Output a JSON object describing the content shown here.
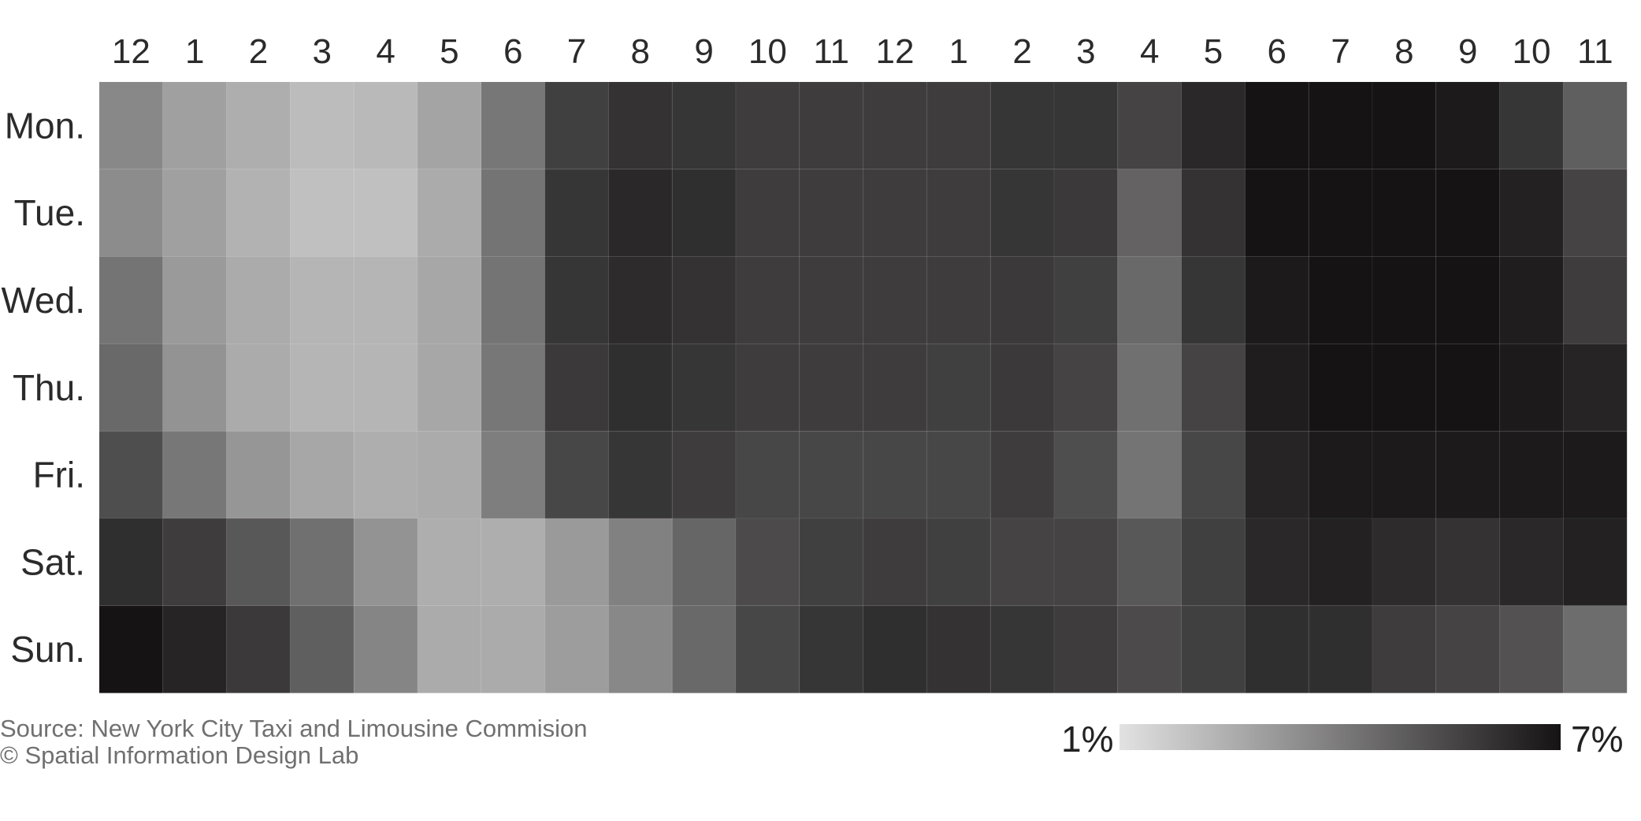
{
  "chart_data": {
    "type": "heatmap",
    "x_tick_labels": [
      "12",
      "1",
      "2",
      "3",
      "4",
      "5",
      "6",
      "7",
      "8",
      "9",
      "10",
      "11",
      "12",
      "1",
      "2",
      "3",
      "4",
      "5",
      "6",
      "7",
      "8",
      "9",
      "10",
      "11"
    ],
    "y_tick_labels": [
      "Mon.",
      "Tue.",
      "Wed.",
      "Thu.",
      "Fri.",
      "Sat.",
      "Sun."
    ],
    "colorscale": {
      "min_label": "1%",
      "max_label": "7%",
      "min_value": 1,
      "max_value": 7,
      "min_color": "#e2e2e2",
      "max_color": "#151313"
    },
    "values_pct": [
      [
        3.6,
        2.9,
        2.5,
        2.1,
        2.2,
        2.8,
        4.1,
        5.7,
        6.1,
        6.0,
        5.8,
        5.8,
        5.8,
        5.8,
        6.0,
        6.0,
        5.6,
        6.4,
        7.5,
        7.5,
        7.0,
        6.8,
        6.0,
        4.8
      ],
      [
        3.5,
        2.9,
        2.4,
        2.0,
        2.0,
        2.6,
        4.2,
        6.0,
        6.4,
        6.2,
        5.8,
        5.8,
        5.8,
        5.8,
        6.0,
        5.9,
        4.7,
        6.1,
        7.0,
        7.2,
        7.1,
        7.1,
        6.6,
        5.6
      ],
      [
        4.2,
        3.1,
        2.6,
        2.3,
        2.3,
        2.7,
        4.2,
        6.0,
        6.3,
        6.1,
        5.8,
        5.8,
        5.8,
        5.8,
        5.9,
        5.7,
        4.5,
        6.0,
        6.8,
        7.1,
        7.0,
        7.0,
        6.7,
        5.8
      ],
      [
        4.5,
        3.3,
        2.6,
        2.3,
        2.3,
        2.7,
        4.1,
        5.9,
        6.2,
        6.0,
        5.8,
        5.8,
        5.8,
        5.7,
        5.9,
        5.6,
        4.3,
        5.6,
        6.7,
        7.0,
        7.0,
        7.0,
        6.8,
        6.5
      ],
      [
        5.3,
        4.1,
        3.2,
        2.7,
        2.5,
        2.6,
        3.9,
        5.5,
        6.0,
        5.8,
        5.5,
        5.5,
        5.5,
        5.5,
        5.8,
        5.3,
        4.2,
        5.5,
        6.5,
        6.8,
        6.8,
        6.8,
        6.8,
        6.8
      ],
      [
        6.2,
        5.8,
        5.0,
        4.3,
        3.3,
        2.5,
        2.5,
        3.1,
        3.8,
        4.6,
        5.4,
        5.7,
        5.8,
        5.7,
        5.6,
        5.6,
        5.0,
        5.7,
        6.4,
        6.6,
        6.3,
        6.1,
        6.4,
        6.6
      ],
      [
        7.0,
        6.5,
        5.9,
        4.8,
        3.7,
        2.6,
        2.6,
        3.0,
        3.6,
        4.5,
        5.5,
        6.0,
        6.2,
        6.1,
        6.0,
        5.8,
        5.4,
        5.7,
        6.2,
        6.2,
        5.8,
        5.6,
        5.2,
        4.4
      ]
    ]
  },
  "credits": {
    "source": "Source: New York City Taxi and Limousine Commision",
    "copyright": "© Spatial Information Design Lab"
  }
}
